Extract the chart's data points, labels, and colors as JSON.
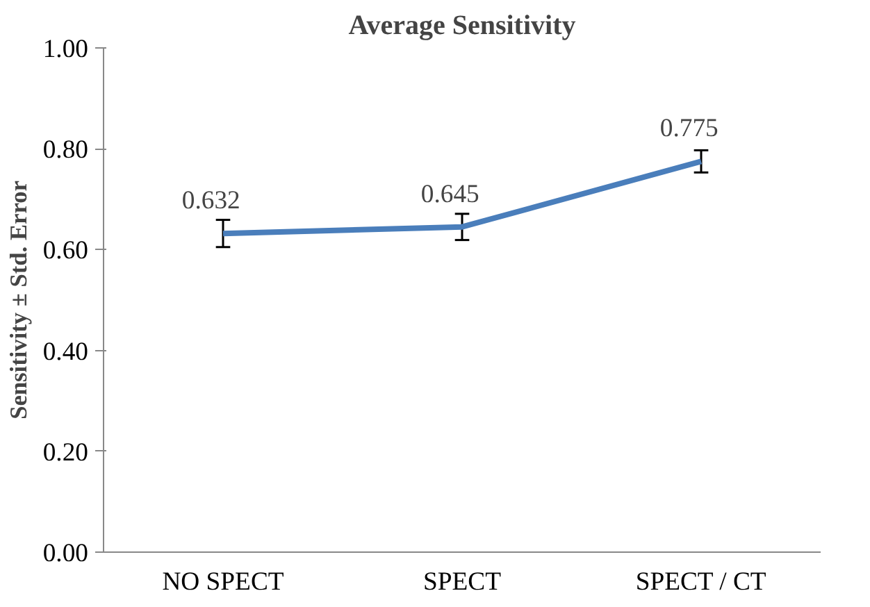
{
  "chart_data": {
    "type": "line",
    "title": "Average Sensitivity",
    "ylabel": "Sensitivity ± Std. Error",
    "categories": [
      "NO SPECT",
      "SPECT",
      "SPECT / CT"
    ],
    "series": [
      {
        "color": "#4a7ebb",
        "values": [
          0.632,
          0.645,
          0.775
        ],
        "errors": [
          0.027,
          0.026,
          0.022
        ]
      }
    ],
    "ylim": [
      0,
      1
    ],
    "yticks": [
      {
        "value": 0,
        "label": "0.00"
      },
      {
        "value": 0.2,
        "label": "0.20"
      },
      {
        "value": 0.4,
        "label": "0.40"
      },
      {
        "value": 0.6,
        "label": "0.60"
      },
      {
        "value": 0.8,
        "label": "0.80"
      },
      {
        "value": 1,
        "label": "1.00"
      }
    ],
    "data_labels": true,
    "grid": false,
    "marker": "none",
    "line_style": "solid"
  }
}
